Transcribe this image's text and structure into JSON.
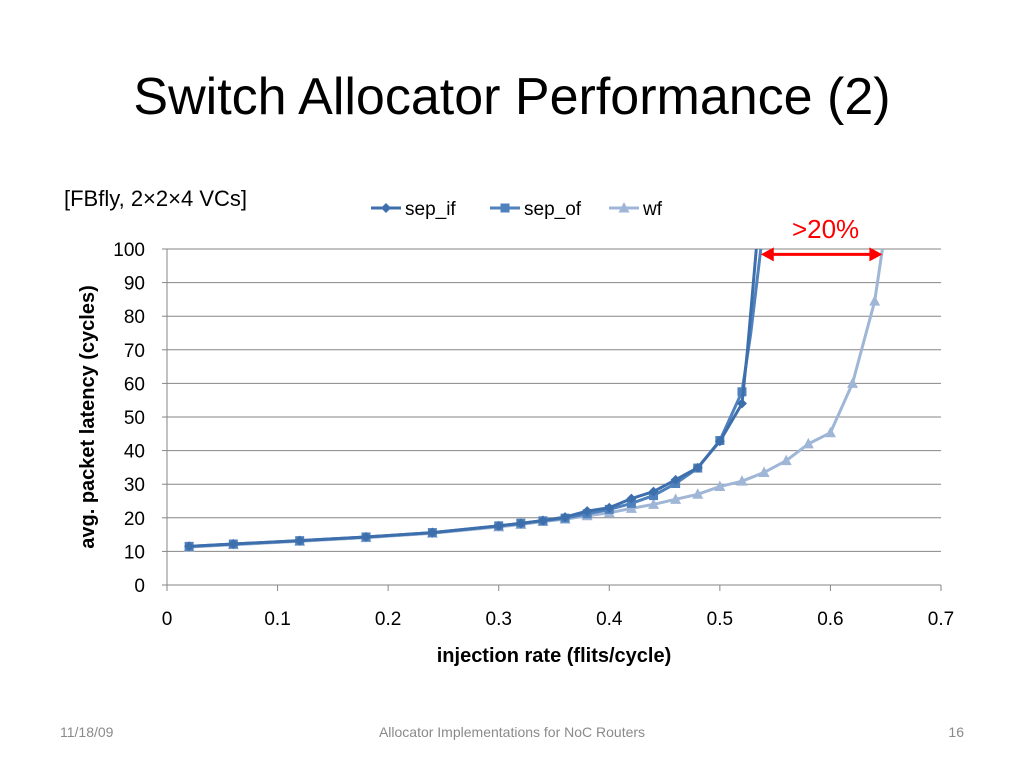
{
  "slide": {
    "title": "Switch Allocator Performance (2)",
    "subtitle": "[FBfly, 2×2×4 VCs]",
    "footer_date": "11/18/09",
    "footer_center": "Allocator Implementations for NoC Routers",
    "page_number": "16"
  },
  "chart_data": {
    "type": "line",
    "title": "",
    "xlabel": "injection rate (flits/cycle)",
    "ylabel": "avg. packet latency (cycles)",
    "xlim": [
      0,
      0.7
    ],
    "ylim": [
      0,
      100
    ],
    "xticks": [
      "0",
      "0.1",
      "0.2",
      "0.3",
      "0.4",
      "0.5",
      "0.6",
      "0.7"
    ],
    "yticks": [
      "0",
      "10",
      "20",
      "30",
      "40",
      "50",
      "60",
      "70",
      "80",
      "90",
      "100"
    ],
    "grid": "horizontal",
    "legend": "top",
    "series": [
      {
        "name": "sep_if",
        "marker": "diamond",
        "color": "#3e6fad",
        "points": [
          [
            0.02,
            11.5
          ],
          [
            0.06,
            12.2
          ],
          [
            0.12,
            13.2
          ],
          [
            0.18,
            14.3
          ],
          [
            0.24,
            15.6
          ],
          [
            0.3,
            17.6
          ],
          [
            0.32,
            18.3
          ],
          [
            0.34,
            19.2
          ],
          [
            0.36,
            20.2
          ],
          [
            0.38,
            22.0
          ],
          [
            0.4,
            23.0
          ],
          [
            0.42,
            25.7
          ],
          [
            0.44,
            27.8
          ],
          [
            0.46,
            31.3
          ],
          [
            0.48,
            34.9
          ],
          [
            0.5,
            42.8
          ],
          [
            0.52,
            54.0
          ]
        ],
        "tail": [
          [
            0.525,
            70
          ],
          [
            0.533,
            100
          ]
        ]
      },
      {
        "name": "sep_of",
        "marker": "square",
        "color": "#4f81bd",
        "points": [
          [
            0.02,
            11.5
          ],
          [
            0.06,
            12.2
          ],
          [
            0.12,
            13.2
          ],
          [
            0.18,
            14.3
          ],
          [
            0.24,
            15.6
          ],
          [
            0.3,
            17.6
          ],
          [
            0.32,
            18.4
          ],
          [
            0.34,
            19.1
          ],
          [
            0.36,
            19.9
          ],
          [
            0.38,
            21.2
          ],
          [
            0.4,
            22.5
          ],
          [
            0.42,
            24.3
          ],
          [
            0.44,
            26.6
          ],
          [
            0.46,
            30.2
          ],
          [
            0.48,
            34.8
          ],
          [
            0.5,
            43.0
          ],
          [
            0.52,
            57.5
          ]
        ],
        "tail": [
          [
            0.528,
            75
          ],
          [
            0.537,
            100
          ]
        ]
      },
      {
        "name": "wf",
        "marker": "triangle",
        "color": "#9fb6d6",
        "points": [
          [
            0.02,
            11.3
          ],
          [
            0.06,
            12.0
          ],
          [
            0.12,
            13.0
          ],
          [
            0.18,
            14.1
          ],
          [
            0.24,
            15.4
          ],
          [
            0.3,
            17.3
          ],
          [
            0.32,
            18.0
          ],
          [
            0.34,
            18.9
          ],
          [
            0.36,
            19.6
          ],
          [
            0.38,
            20.6
          ],
          [
            0.4,
            21.5
          ],
          [
            0.42,
            22.8
          ],
          [
            0.44,
            24.0
          ],
          [
            0.46,
            25.5
          ],
          [
            0.48,
            27.0
          ],
          [
            0.5,
            29.3
          ],
          [
            0.52,
            30.9
          ],
          [
            0.54,
            33.5
          ],
          [
            0.56,
            37.0
          ],
          [
            0.58,
            42.0
          ],
          [
            0.6,
            45.3
          ],
          [
            0.62,
            60.0
          ],
          [
            0.64,
            84.5
          ]
        ],
        "tail": [
          [
            0.647,
            100
          ]
        ]
      }
    ],
    "annotation": {
      "text": ">20%",
      "color": "#ff0000",
      "x_from": 0.537,
      "x_to": 0.647,
      "y": 99
    }
  }
}
